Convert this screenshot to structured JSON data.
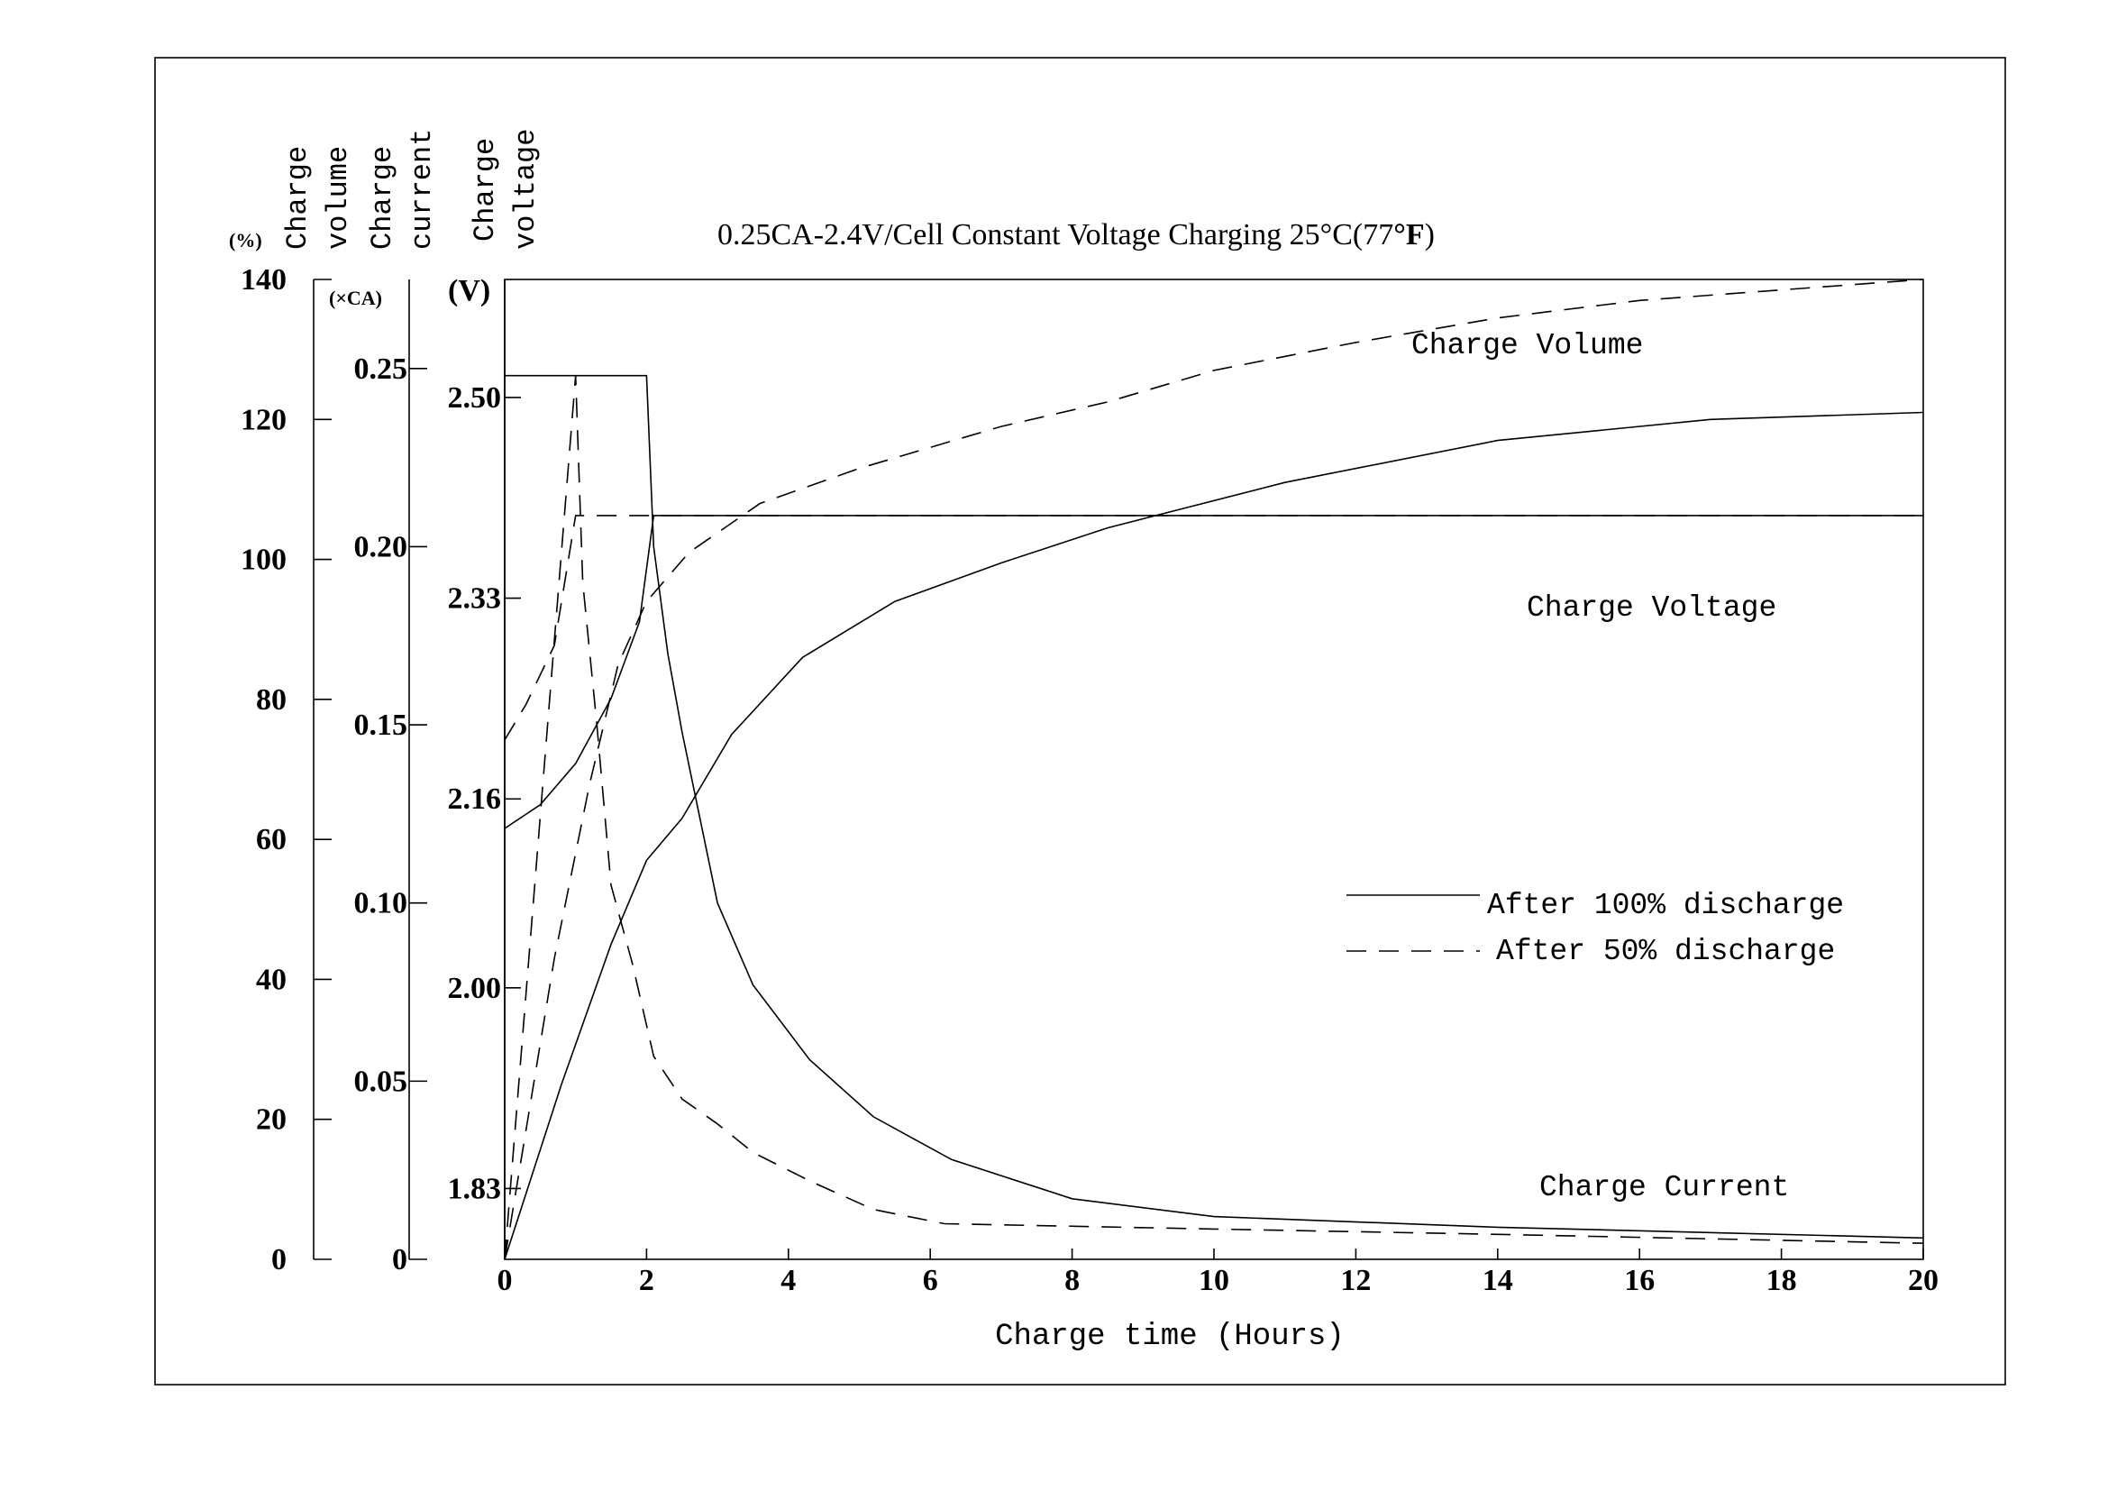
{
  "chart_data": {
    "type": "line",
    "title": "0.25CA-2.4V/Cell Constant Voltage Charging 25°C(77°F)",
    "title_main": "0.25CA-2.4V/Cell Constant Voltage Charging 25°C(77",
    "title_deg": "°F",
    "title_close": ")",
    "xlabel": "Charge time (Hours)",
    "xlim": [
      0,
      20
    ],
    "x_ticks": [
      "0",
      "2",
      "4",
      "6",
      "8",
      "10",
      "12",
      "14",
      "16",
      "18",
      "20"
    ],
    "axes": {
      "volume": {
        "label_line1": "Charge",
        "label_line2": "volume",
        "unit": "(%)",
        "ylim": [
          0,
          140
        ],
        "ticks": [
          "0",
          "20",
          "40",
          "60",
          "80",
          "100",
          "120",
          "140"
        ]
      },
      "current": {
        "label_line1": "Charge",
        "label_line2": "current",
        "unit": "(×CA)",
        "ylim": [
          0,
          0.275
        ],
        "ticks": [
          "0",
          "0.05",
          "0.10",
          "0.15",
          "0.20",
          "0.25"
        ]
      },
      "voltage": {
        "label_line1": "Charge",
        "label_line2": "voltage",
        "unit": "(V)",
        "ylim": [
          1.77,
          2.6
        ],
        "ticks": [
          "1.83",
          "2.00",
          "2.16",
          "2.33",
          "2.50"
        ]
      }
    },
    "annotations": {
      "volume": "Charge Volume",
      "voltage": "Charge Voltage",
      "current": "Charge Current"
    },
    "legend": {
      "placement": "center-right",
      "entries": [
        {
          "label": "After 100% discharge",
          "style": "solid"
        },
        {
          "label": "After 50% discharge",
          "style": "dashed"
        }
      ]
    },
    "series": [
      {
        "name": "After 100% discharge",
        "quantity": "voltage",
        "axis": "voltage",
        "style": "solid",
        "points": [
          [
            0,
            2.135
          ],
          [
            0.5,
            2.155
          ],
          [
            1,
            2.19
          ],
          [
            1.5,
            2.245
          ],
          [
            1.9,
            2.31
          ],
          [
            2.1,
            2.4
          ],
          [
            20,
            2.4
          ]
        ]
      },
      {
        "name": "After 50% discharge",
        "quantity": "voltage",
        "axis": "voltage",
        "style": "dashed",
        "points": [
          [
            0,
            2.21
          ],
          [
            0.3,
            2.24
          ],
          [
            0.7,
            2.29
          ],
          [
            1,
            2.4
          ],
          [
            20,
            2.4
          ]
        ]
      },
      {
        "name": "After 100% discharge",
        "quantity": "volume",
        "axis": "volume",
        "style": "solid",
        "points": [
          [
            0,
            0
          ],
          [
            0.8,
            25
          ],
          [
            1.5,
            45
          ],
          [
            2,
            57
          ],
          [
            2.5,
            63
          ],
          [
            3.2,
            75
          ],
          [
            4.2,
            86
          ],
          [
            5.5,
            94
          ],
          [
            7,
            99.5
          ],
          [
            8.5,
            104.5
          ],
          [
            11,
            111
          ],
          [
            14,
            117
          ],
          [
            17,
            120
          ],
          [
            20,
            121
          ]
        ]
      },
      {
        "name": "After 50% discharge",
        "quantity": "volume",
        "axis": "volume",
        "style": "dashed",
        "points": [
          [
            0,
            0
          ],
          [
            0.7,
            43
          ],
          [
            1.2,
            68
          ],
          [
            1.6,
            85
          ],
          [
            2,
            94
          ],
          [
            2.6,
            101
          ],
          [
            3.6,
            108
          ],
          [
            5,
            113
          ],
          [
            7,
            119
          ],
          [
            8.5,
            122.5
          ],
          [
            10,
            127
          ],
          [
            12,
            131
          ],
          [
            14,
            134.5
          ],
          [
            16,
            137
          ],
          [
            18,
            138.5
          ],
          [
            20,
            140
          ]
        ]
      },
      {
        "name": "After 100% discharge",
        "quantity": "current",
        "axis": "current",
        "style": "solid",
        "points": [
          [
            0,
            0.248
          ],
          [
            2,
            0.248
          ],
          [
            2.1,
            0.2
          ],
          [
            2.3,
            0.17
          ],
          [
            2.5,
            0.148
          ],
          [
            3,
            0.1
          ],
          [
            3.5,
            0.077
          ],
          [
            4.3,
            0.056
          ],
          [
            5.2,
            0.04
          ],
          [
            6.3,
            0.028
          ],
          [
            8,
            0.017
          ],
          [
            10,
            0.012
          ],
          [
            14,
            0.009
          ],
          [
            20,
            0.006
          ]
        ]
      },
      {
        "name": "After 50% discharge",
        "quantity": "current",
        "axis": "current",
        "style": "dashed",
        "points": [
          [
            0,
            0.0
          ],
          [
            1,
            0.248
          ],
          [
            1.1,
            0.19
          ],
          [
            1.3,
            0.15
          ],
          [
            1.5,
            0.105
          ],
          [
            1.8,
            0.083
          ],
          [
            2.1,
            0.057
          ],
          [
            2.5,
            0.045
          ],
          [
            3,
            0.038
          ],
          [
            3.5,
            0.03
          ],
          [
            4.3,
            0.022
          ],
          [
            5.2,
            0.014
          ],
          [
            6.2,
            0.01
          ],
          [
            10,
            0.0085
          ],
          [
            14,
            0.007
          ],
          [
            20,
            0.0045
          ]
        ]
      }
    ]
  }
}
